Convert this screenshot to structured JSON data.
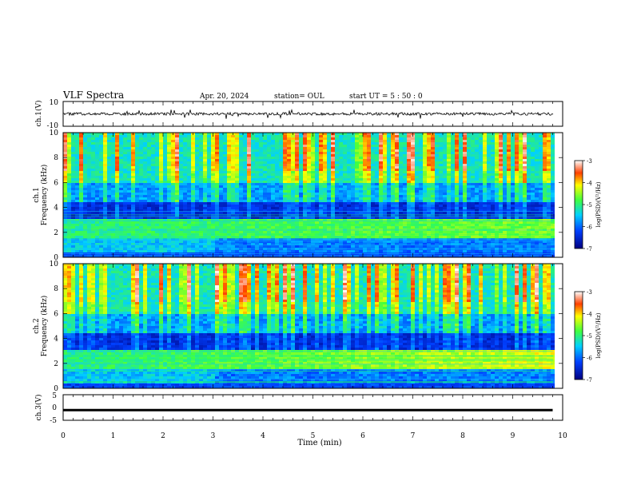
{
  "header": {
    "title": "VLF Spectra",
    "date": "Apr. 20, 2024",
    "station": "station= OUL",
    "start": "start UT =  5 : 50 : 0"
  },
  "chart_data": [
    {
      "type": "line",
      "name": "ch1-waveform",
      "ylabel": "ch.1(V)",
      "ylim": [
        -10,
        10
      ],
      "yticks": [
        "10",
        "-10"
      ],
      "xlim": [
        0,
        10
      ]
    },
    {
      "type": "heatmap",
      "name": "ch1-spectrogram",
      "ylabel": "ch.1\nFrequency (kHz)",
      "ylim": [
        0,
        10
      ],
      "yticks": [
        "0",
        "2",
        "4",
        "6",
        "8",
        "10"
      ],
      "xlim": [
        0,
        10
      ],
      "colorbar": {
        "label": "log(PSD)(V²/Hz)",
        "ticks": [
          "-3",
          "-4",
          "-5",
          "-6",
          "-7"
        ],
        "range": [
          -7,
          -3
        ]
      }
    },
    {
      "type": "heatmap",
      "name": "ch2-spectrogram",
      "ylabel": "ch.2\nFrequency (kHz)",
      "ylim": [
        0,
        10
      ],
      "yticks": [
        "0",
        "2",
        "4",
        "6",
        "8",
        "10"
      ],
      "xlim": [
        0,
        10
      ],
      "colorbar": {
        "label": "log(PSD)(V²/Hz)",
        "ticks": [
          "-3",
          "-4",
          "-5",
          "-6",
          "-7"
        ],
        "range": [
          -7,
          -3
        ]
      }
    },
    {
      "type": "line",
      "name": "ch3-waveform",
      "ylabel": "ch.3(V)",
      "ylim": [
        -5,
        5
      ],
      "yticks": [
        "5",
        "0",
        "-5"
      ],
      "xlim": [
        0,
        10
      ],
      "series": [
        {
          "x": [
            0,
            9.8
          ],
          "y": [
            -1,
            -1
          ]
        }
      ]
    }
  ],
  "xaxis": {
    "label": "Time (min)",
    "ticks": [
      "0",
      "1",
      "2",
      "3",
      "4",
      "5",
      "6",
      "7",
      "8",
      "9",
      "10"
    ]
  }
}
